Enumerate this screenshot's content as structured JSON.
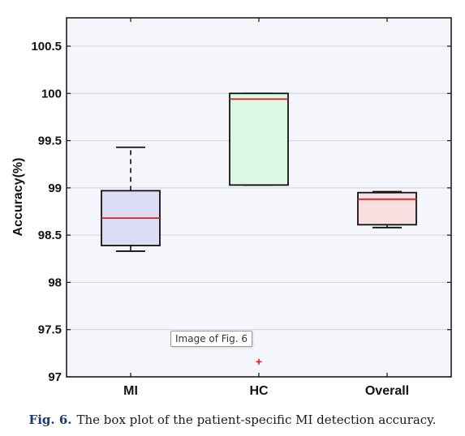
{
  "chart_data": {
    "type": "box",
    "ylabel": "Accuracy(%)",
    "ylim": [
      97,
      100.8
    ],
    "yticks": [
      97,
      97.5,
      98,
      98.5,
      99,
      99.5,
      100,
      100.5
    ],
    "ytick_labels": [
      "97",
      "97.5",
      "98",
      "98.5",
      "99",
      "99.5",
      "100",
      "100.5"
    ],
    "grid": true,
    "categories": [
      "MI",
      "HC",
      "Overall"
    ],
    "boxes": [
      {
        "name": "MI",
        "whisker_low": 98.33,
        "q1": 98.39,
        "median": 98.68,
        "q3": 98.97,
        "whisker_high": 99.43,
        "outliers": [],
        "fill": "#dcdcf7"
      },
      {
        "name": "HC",
        "whisker_low": 99.03,
        "q1": 99.03,
        "median": 99.94,
        "q3": 100.0,
        "whisker_high": 100.0,
        "outliers": [
          97.16
        ],
        "fill": "#dcf7e2"
      },
      {
        "name": "Overall",
        "whisker_low": 98.58,
        "q1": 98.61,
        "median": 98.88,
        "q3": 98.95,
        "whisker_high": 98.96,
        "outliers": [],
        "fill": "#f7dedf"
      }
    ],
    "median_color": "#e02020",
    "outlier_color": "#e02020",
    "plot_background": "#f4f6fc"
  },
  "tooltip": {
    "text": "Image of Fig. 6"
  },
  "caption": {
    "label": "Fig. 6.",
    "text": "The box plot of the patient-specific MI detection accuracy."
  }
}
